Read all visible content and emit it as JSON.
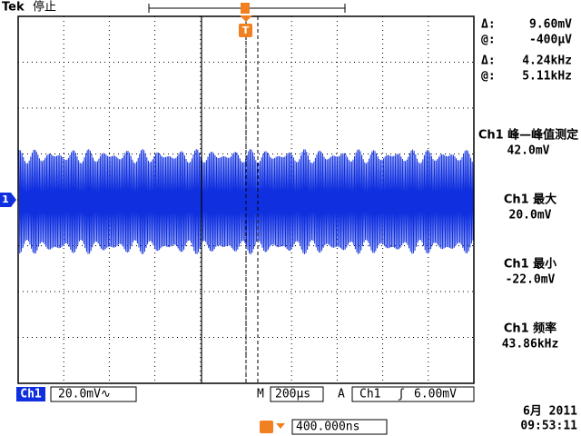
{
  "header": {
    "brand": "Tek",
    "status": "停止"
  },
  "cursors": [
    {
      "label": "Δ:",
      "value": "9.60mV"
    },
    {
      "label": "@:",
      "value": "-400μV"
    },
    {
      "label": "Δ:",
      "value": "4.24kHz"
    },
    {
      "label": "@:",
      "value": "5.11kHz"
    }
  ],
  "measurements": [
    {
      "label": "Ch1 峰—峰值测定",
      "value": "42.0mV"
    },
    {
      "label": "Ch1 最大",
      "value": "20.0mV"
    },
    {
      "label": "Ch1 最小",
      "value": "-22.0mV"
    },
    {
      "label": "Ch1 频率",
      "value": "43.86kHz"
    }
  ],
  "footer": {
    "channel": "Ch1",
    "scale": "20.0mV∿",
    "time_label": "M",
    "time_scale": "200μs",
    "trigger_label": "A",
    "trigger_source": "Ch1",
    "trigger_slope": "ʃ",
    "trigger_level": "6.00mV",
    "trigger_position": "400.000ns",
    "date": "6月 2011",
    "time": "09:53:11"
  },
  "markers": {
    "channel": "1",
    "trigger": "T"
  }
}
